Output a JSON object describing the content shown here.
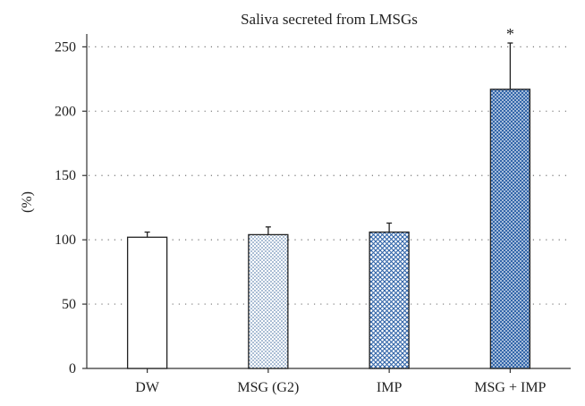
{
  "chart_data": {
    "type": "bar",
    "title": "Saliva secreted from LMSGs",
    "xlabel": "",
    "ylabel": "(%)",
    "categories": [
      "DW",
      "MSG (G2)",
      "IMP",
      "MSG + IMP"
    ],
    "values": [
      102,
      104,
      106,
      217
    ],
    "errors": [
      4,
      6,
      7,
      36
    ],
    "patterns": [
      "none",
      "light-dots",
      "blue-crosshatch",
      "blue-dense-crosshatch"
    ],
    "annotations": [
      "",
      "",
      "",
      "*"
    ],
    "ylim": [
      0,
      260
    ],
    "yticks": [
      0,
      50,
      100,
      150,
      200,
      250
    ],
    "grid": "horizontal-dotted",
    "legend": "none",
    "colors": {
      "axis": "#333333",
      "light_pattern": "#6f8fb8",
      "blue_pattern": "#2f63a8"
    }
  }
}
